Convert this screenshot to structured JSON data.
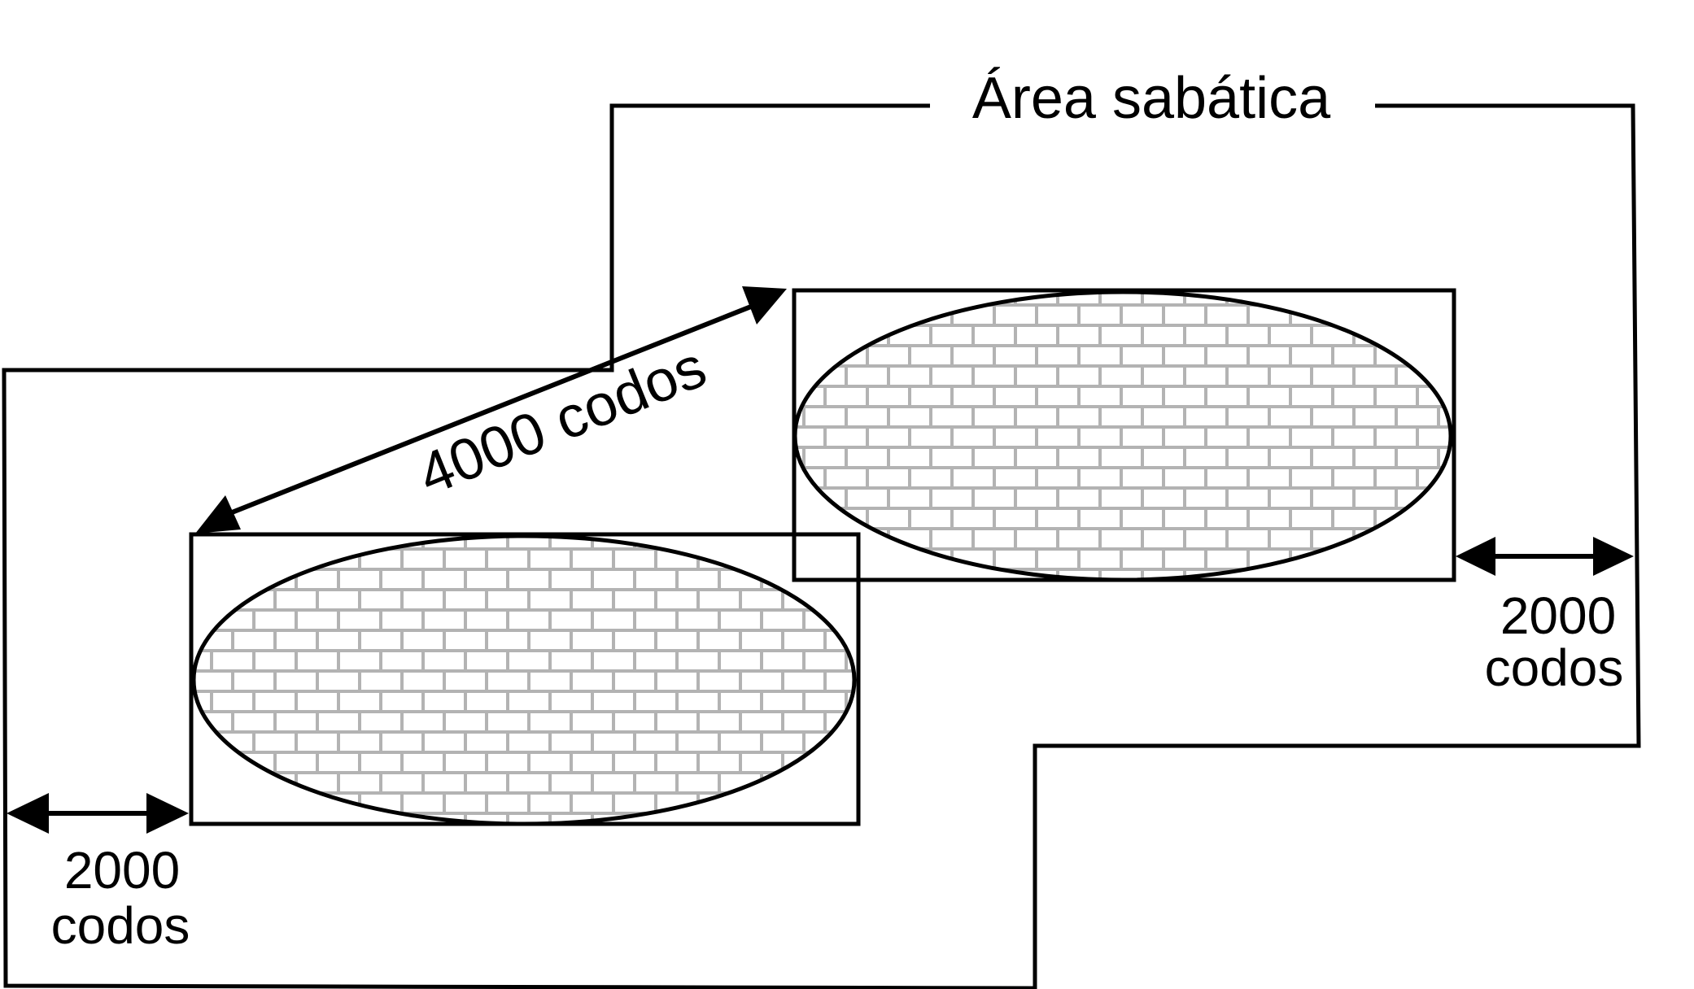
{
  "diagram": {
    "title": "Área sabática",
    "distance_between_cities": "4000 codos",
    "left_margin": {
      "line1": "2000",
      "line2": "codos"
    },
    "right_margin": {
      "line1": "2000",
      "line2": "codos"
    },
    "colors": {
      "line": "#000000",
      "brick_mortar": "#b3b3b3",
      "brick_face": "#ffffff",
      "background": "#ffffff"
    }
  }
}
